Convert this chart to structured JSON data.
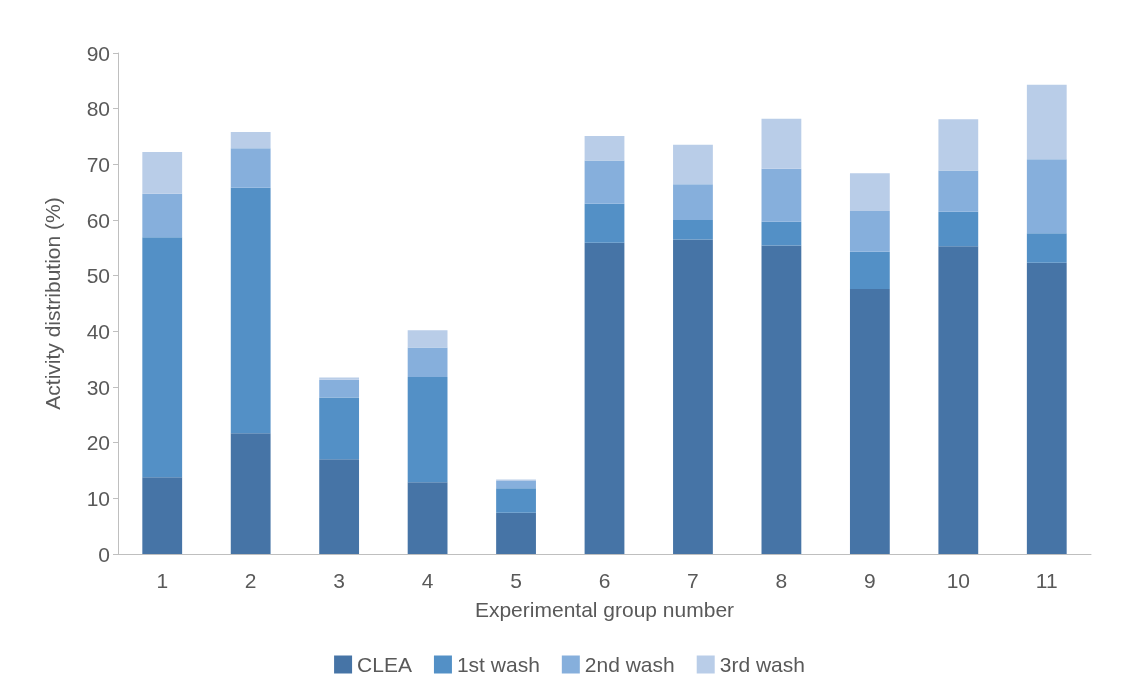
{
  "chart_data": {
    "type": "bar",
    "stacked": true,
    "xlabel": "Experimental group number",
    "ylabel": "Activity distribution (%)",
    "categories": [
      "1",
      "2",
      "3",
      "4",
      "5",
      "6",
      "7",
      "8",
      "9",
      "10",
      "11"
    ],
    "series": [
      {
        "name": "CLEA",
        "color": "#4674a6",
        "values": [
          13.8,
          21.7,
          17.0,
          12.9,
          7.4,
          55.9,
          56.5,
          55.4,
          47.6,
          55.3,
          52.3
        ]
      },
      {
        "name": "1st wash",
        "color": "#5390c6",
        "values": [
          43.1,
          44.1,
          11.1,
          18.9,
          4.4,
          7.0,
          3.5,
          4.3,
          6.7,
          6.2,
          5.3
        ]
      },
      {
        "name": "2nd wash",
        "color": "#86afdc",
        "values": [
          7.8,
          7.1,
          3.2,
          5.3,
          1.3,
          7.8,
          6.4,
          9.5,
          7.3,
          7.4,
          13.3
        ]
      },
      {
        "name": "3rd wash",
        "color": "#b9cde8",
        "values": [
          7.5,
          2.9,
          0.4,
          3.1,
          0.3,
          4.4,
          7.1,
          9.0,
          6.8,
          9.2,
          13.4
        ]
      }
    ],
    "ylim": [
      0,
      90
    ],
    "yticks": [
      0,
      10,
      20,
      30,
      40,
      50,
      60,
      70,
      80,
      90
    ],
    "grid": false,
    "legend": "bottom"
  }
}
